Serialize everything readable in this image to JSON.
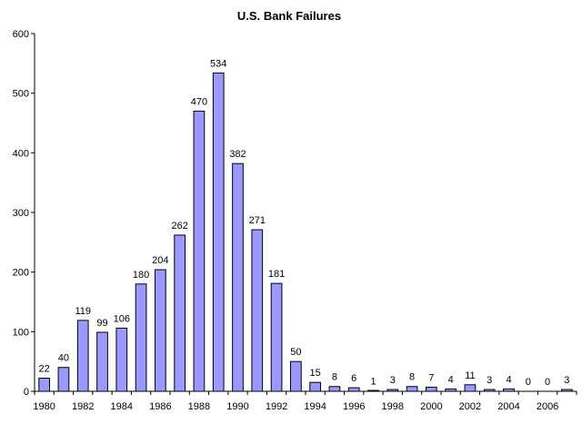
{
  "chart_data": {
    "type": "bar",
    "title": "U.S. Bank Failures",
    "xlabel": "",
    "ylabel": "",
    "ylim": [
      0,
      600
    ],
    "yticks": [
      0,
      100,
      200,
      300,
      400,
      500,
      600
    ],
    "categories": [
      "1980",
      "1981",
      "1982",
      "1983",
      "1984",
      "1985",
      "1986",
      "1987",
      "1988",
      "1989",
      "1990",
      "1991",
      "1992",
      "1993",
      "1994",
      "1995",
      "1996",
      "1997",
      "1998",
      "1999",
      "2000",
      "2001",
      "2002",
      "2003",
      "2004",
      "2005",
      "2006",
      "2007"
    ],
    "xtick_labels": [
      "1980",
      "",
      "1982",
      "",
      "1984",
      "",
      "1986",
      "",
      "1988",
      "",
      "1990",
      "",
      "1992",
      "",
      "1994",
      "",
      "1996",
      "",
      "1998",
      "",
      "2000",
      "",
      "2002",
      "",
      "2004",
      "",
      "2006",
      ""
    ],
    "values": [
      22,
      40,
      119,
      99,
      106,
      180,
      204,
      262,
      470,
      534,
      382,
      271,
      181,
      50,
      15,
      8,
      6,
      1,
      3,
      8,
      7,
      4,
      11,
      3,
      4,
      0,
      0,
      3
    ],
    "grid": false,
    "legend": "none",
    "bar_color": "#9999ff",
    "bar_edge_color": "#000000"
  }
}
